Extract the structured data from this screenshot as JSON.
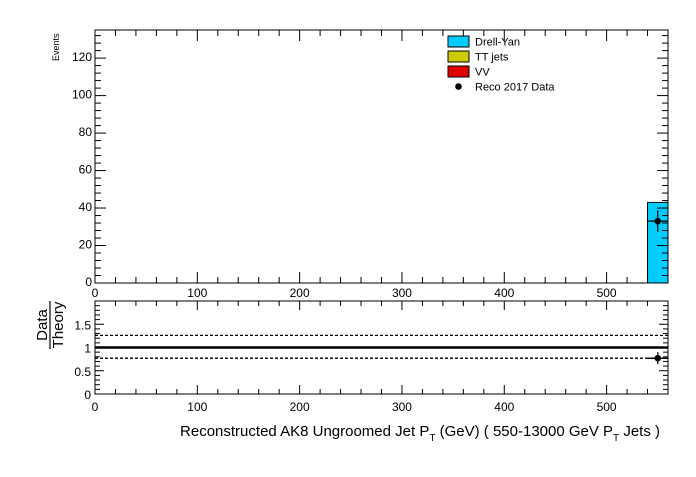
{
  "chart_data": [
    {
      "type": "bar",
      "panel": "main",
      "ylabel": "Events",
      "xlim": [
        0,
        560
      ],
      "ylim": [
        0,
        135
      ],
      "x_ticks": [
        0,
        100,
        200,
        300,
        400,
        500
      ],
      "y_ticks": [
        0,
        20,
        40,
        60,
        80,
        100,
        120
      ],
      "legend_placement": "top-right",
      "legend": [
        {
          "label": "Drell-Yan",
          "color": "#00ccff",
          "kind": "box"
        },
        {
          "label": "TT jets",
          "color": "#cccc00",
          "kind": "box"
        },
        {
          "label": "VV",
          "color": "#dd0000",
          "kind": "box"
        },
        {
          "label": "Reco 2017 Data",
          "color": "#000000",
          "kind": "marker"
        }
      ],
      "stack": [
        {
          "name": "Drell-Yan",
          "color": "#00ccff",
          "bins": [
            {
              "x0": 540,
              "x1": 560,
              "y": 43
            }
          ]
        }
      ],
      "data_points": [
        {
          "x": 550,
          "y": 33,
          "yerr": 5.7,
          "xerr": 10
        }
      ]
    },
    {
      "type": "scatter",
      "panel": "ratio",
      "ylabel_numerator": "Data",
      "ylabel_denominator": "Theory",
      "xlabel_main": "Reconstructed AK8 Ungroomed Jet P",
      "xlabel_sub1": "T",
      "xlabel_mid": " (GeV) ( 550-13000 GeV P",
      "xlabel_sub2": "T",
      "xlabel_end": " Jets  )",
      "xlim": [
        0,
        560
      ],
      "ylim": [
        0,
        2
      ],
      "x_ticks": [
        0,
        100,
        200,
        300,
        400,
        500
      ],
      "y_ticks": [
        0,
        0.5,
        1,
        1.5
      ],
      "y_tick_labels": [
        "0",
        "0.5",
        "1",
        "1.5"
      ],
      "reference_line": 1,
      "band_lines": [
        0.77,
        1.26
      ],
      "points": [
        {
          "x": 550,
          "y": 0.77,
          "yerr": 0.13,
          "xerr": 10
        }
      ]
    }
  ]
}
